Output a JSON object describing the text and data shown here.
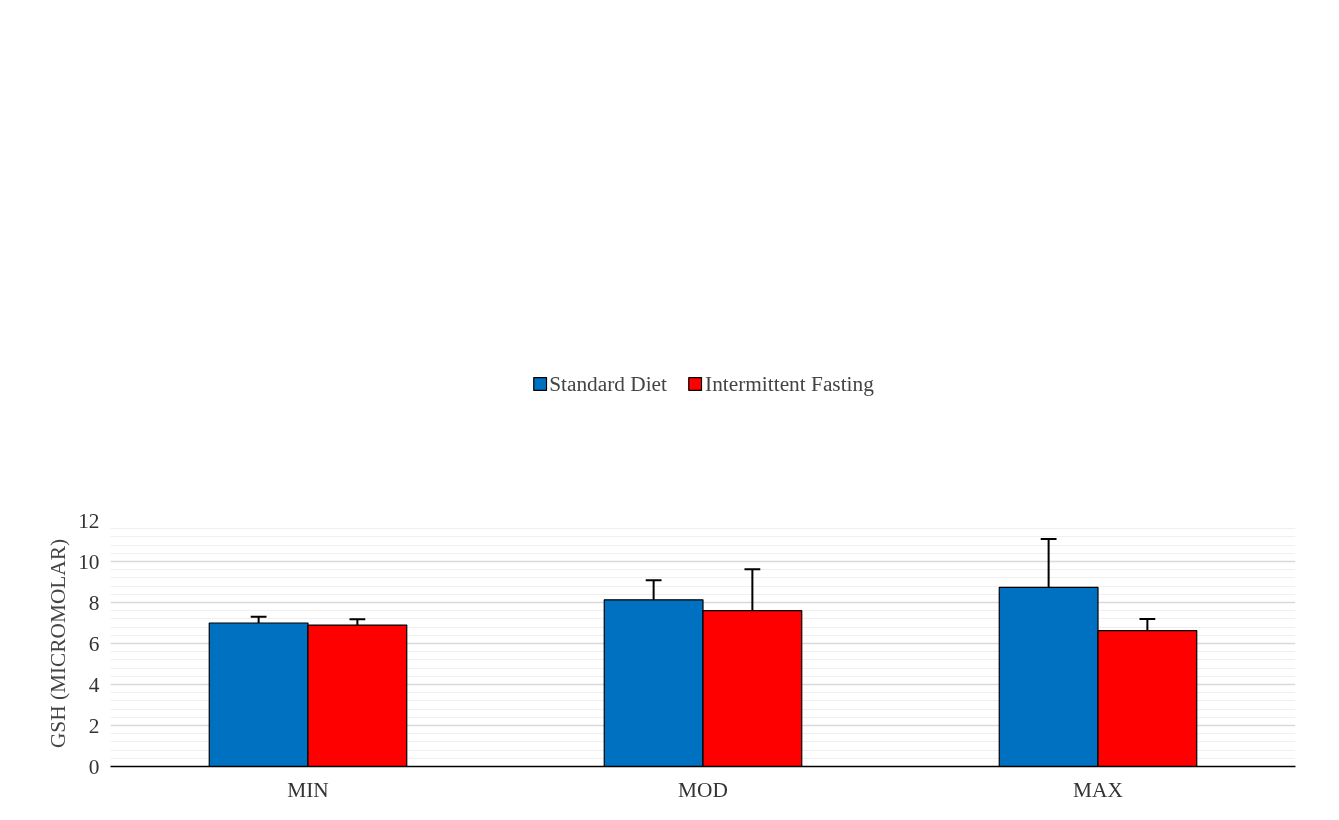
{
  "chart_data": {
    "type": "bar",
    "ylabel": "GSH (MICROMOLAR)",
    "categories": [
      "MIN",
      "MOD",
      "MAX"
    ],
    "series": [
      {
        "name": "Standard Diet",
        "color": "#0070c0",
        "values": [
          7.0,
          8.13,
          8.74
        ],
        "errors": [
          [
            7.0,
            7.31
          ],
          [
            8.13,
            9.08
          ],
          [
            8.74,
            11.1
          ]
        ]
      },
      {
        "name": "Intermittent Fasting",
        "color": "#ff0000",
        "values": [
          6.9,
          7.6,
          6.63
        ],
        "errors": [
          [
            6.9,
            7.18
          ],
          [
            7.6,
            9.62
          ],
          [
            6.63,
            7.2
          ]
        ]
      }
    ],
    "ylim": [
      0,
      12
    ],
    "yticks": [
      0,
      2,
      4,
      6,
      8,
      10,
      12
    ],
    "grid": "y",
    "legend": "top"
  }
}
